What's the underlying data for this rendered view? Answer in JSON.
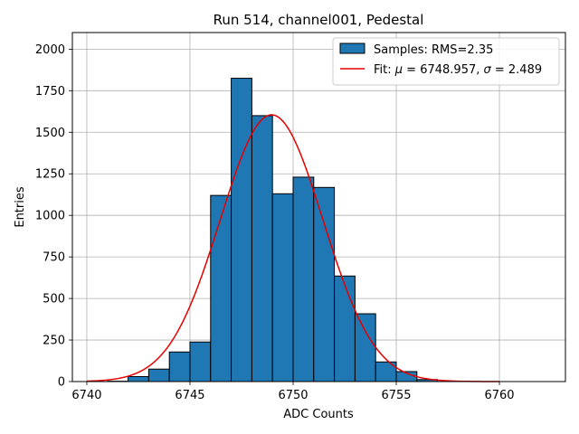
{
  "chart_data": {
    "type": "bar",
    "title": "Run 514, channel001, Pedestal",
    "xlabel": "ADC Counts",
    "ylabel": "Entries",
    "xlim": [
      6739.3,
      6763.2
    ],
    "ylim": [
      0,
      2100
    ],
    "xticks": [
      6740,
      6745,
      6750,
      6755,
      6760
    ],
    "yticks": [
      0,
      250,
      500,
      750,
      1000,
      1250,
      1500,
      1750,
      2000
    ],
    "grid": true,
    "legend_position": "top-right",
    "colors": {
      "bars": "#1f77b4",
      "bar_edge": "#000000",
      "fit": "#e60000",
      "grid": "#b0b0b0"
    },
    "histogram": {
      "name": "Samples: RMS=2.35",
      "bins": [
        {
          "x0": 6741,
          "x1": 6742,
          "count": 2
        },
        {
          "x0": 6742,
          "x1": 6743,
          "count": 30
        },
        {
          "x0": 6743,
          "x1": 6744,
          "count": 75
        },
        {
          "x0": 6744,
          "x1": 6745,
          "count": 178
        },
        {
          "x0": 6745,
          "x1": 6746,
          "count": 238
        },
        {
          "x0": 6746,
          "x1": 6747,
          "count": 1120
        },
        {
          "x0": 6747,
          "x1": 6748,
          "count": 1825
        },
        {
          "x0": 6748,
          "x1": 6749,
          "count": 1600
        },
        {
          "x0": 6749,
          "x1": 6750,
          "count": 1130
        },
        {
          "x0": 6750,
          "x1": 6751,
          "count": 1230
        },
        {
          "x0": 6751,
          "x1": 6752,
          "count": 1168
        },
        {
          "x0": 6752,
          "x1": 6753,
          "count": 635
        },
        {
          "x0": 6753,
          "x1": 6754,
          "count": 408
        },
        {
          "x0": 6754,
          "x1": 6755,
          "count": 118
        },
        {
          "x0": 6755,
          "x1": 6756,
          "count": 60
        },
        {
          "x0": 6756,
          "x1": 6757,
          "count": 12
        }
      ]
    },
    "fit": {
      "name_prefix": "Fit: ",
      "mu_symbol": "μ",
      "sigma_symbol": "σ",
      "mu": 6748.957,
      "sigma": 2.489,
      "mu_text": " = 6748.957, ",
      "sigma_text": " = 2.489",
      "amplitude": 1605,
      "x_range": [
        6740,
        6760
      ]
    }
  }
}
